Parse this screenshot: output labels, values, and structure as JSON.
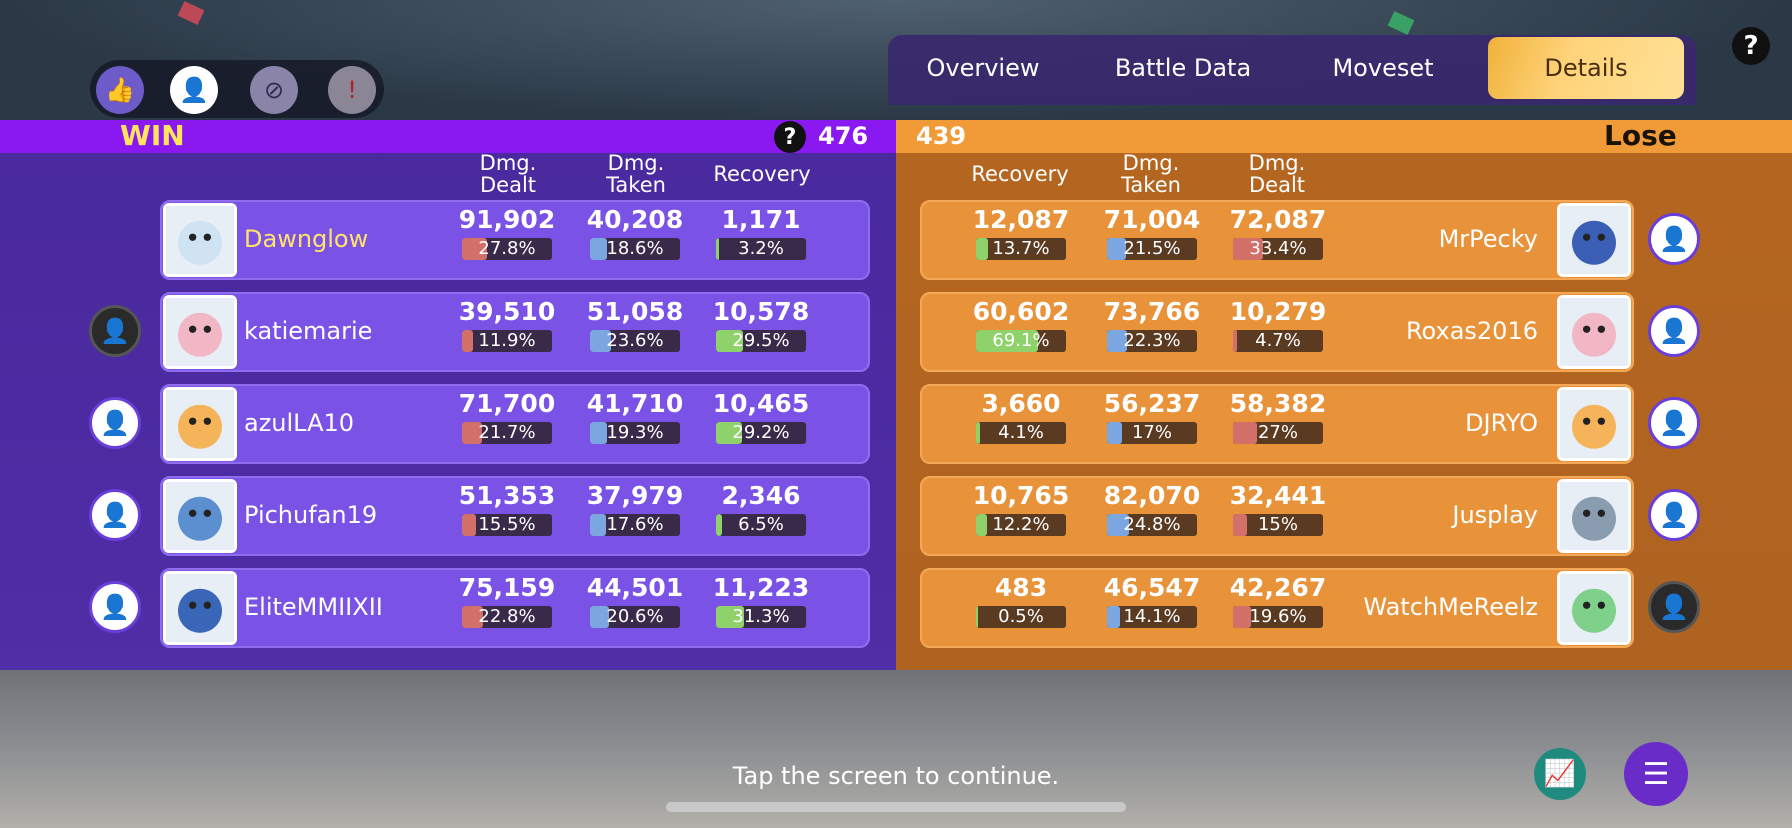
{
  "tabs": [
    {
      "label": "Overview"
    },
    {
      "label": "Battle Data"
    },
    {
      "label": "Moveset"
    },
    {
      "label": "Details"
    }
  ],
  "selected_tab": "Details",
  "reactions": [
    "thumbs-up-icon",
    "add-friend-icon",
    "block-user-icon",
    "report-icon"
  ],
  "win_team": {
    "result": "WIN",
    "score": "476",
    "headers": {
      "dealt": "Dmg.\nDealt",
      "taken": "Dmg.\nTaken",
      "recovery": "Recovery"
    },
    "players": [
      {
        "name": "Dawnglow",
        "dealt": "91,902",
        "dealt_pct": "27.8%",
        "dealt_frac": 0.278,
        "taken": "40,208",
        "taken_pct": "18.6%",
        "taken_frac": 0.186,
        "recovery": "1,171",
        "recovery_pct": "3.2%",
        "recovery_frac": 0.032,
        "friend": "none",
        "avatar_color": "#cfe3f2"
      },
      {
        "name": "katiemarie",
        "dealt": "39,510",
        "dealt_pct": "11.9%",
        "dealt_frac": 0.119,
        "taken": "51,058",
        "taken_pct": "23.6%",
        "taken_frac": 0.236,
        "recovery": "10,578",
        "recovery_pct": "29.5%",
        "recovery_frac": 0.295,
        "friend": "off",
        "avatar_color": "#f2b7c5"
      },
      {
        "name": "azulLA10",
        "dealt": "71,700",
        "dealt_pct": "21.7%",
        "dealt_frac": 0.217,
        "taken": "41,710",
        "taken_pct": "19.3%",
        "taken_frac": 0.193,
        "recovery": "10,465",
        "recovery_pct": "29.2%",
        "recovery_frac": 0.292,
        "friend": "on",
        "avatar_color": "#f5b45a"
      },
      {
        "name": "Pichufan19",
        "dealt": "51,353",
        "dealt_pct": "15.5%",
        "dealt_frac": 0.155,
        "taken": "37,979",
        "taken_pct": "17.6%",
        "taken_frac": 0.176,
        "recovery": "2,346",
        "recovery_pct": "6.5%",
        "recovery_frac": 0.065,
        "friend": "on",
        "avatar_color": "#5b8fcf"
      },
      {
        "name": "EliteMMIIXII",
        "dealt": "75,159",
        "dealt_pct": "22.8%",
        "dealt_frac": 0.228,
        "taken": "44,501",
        "taken_pct": "20.6%",
        "taken_frac": 0.206,
        "recovery": "11,223",
        "recovery_pct": "31.3%",
        "recovery_frac": 0.313,
        "friend": "on",
        "avatar_color": "#3a66b8"
      }
    ]
  },
  "lose_team": {
    "result": "Lose",
    "score": "439",
    "headers": {
      "recovery": "Recovery",
      "taken": "Dmg.\nTaken",
      "dealt": "Dmg.\nDealt"
    },
    "players": [
      {
        "name": "MrPecky",
        "dealt": "72,087",
        "dealt_pct": "33.4%",
        "dealt_frac": 0.334,
        "taken": "71,004",
        "taken_pct": "21.5%",
        "taken_frac": 0.215,
        "recovery": "12,087",
        "recovery_pct": "13.7%",
        "recovery_frac": 0.137,
        "friend": "on",
        "avatar_color": "#3a5fb5"
      },
      {
        "name": "Roxas2016",
        "dealt": "10,279",
        "dealt_pct": "4.7%",
        "dealt_frac": 0.047,
        "taken": "73,766",
        "taken_pct": "22.3%",
        "taken_frac": 0.223,
        "recovery": "60,602",
        "recovery_pct": "69.1%",
        "recovery_frac": 0.691,
        "friend": "on",
        "avatar_color": "#f2b7c5"
      },
      {
        "name": "DJRYO",
        "dealt": "58,382",
        "dealt_pct": "27%",
        "dealt_frac": 0.27,
        "taken": "56,237",
        "taken_pct": "17%",
        "taken_frac": 0.17,
        "recovery": "3,660",
        "recovery_pct": "4.1%",
        "recovery_frac": 0.041,
        "friend": "on",
        "avatar_color": "#f5b45a"
      },
      {
        "name": "Jusplay",
        "dealt": "32,441",
        "dealt_pct": "15%",
        "dealt_frac": 0.15,
        "taken": "82,070",
        "taken_pct": "24.8%",
        "taken_frac": 0.248,
        "recovery": "10,765",
        "recovery_pct": "12.2%",
        "recovery_frac": 0.122,
        "friend": "on",
        "avatar_color": "#8a9cb0"
      },
      {
        "name": "WatchMeReelz",
        "dealt": "42,267",
        "dealt_pct": "19.6%",
        "dealt_frac": 0.196,
        "taken": "46,547",
        "taken_pct": "14.1%",
        "taken_frac": 0.141,
        "recovery": "483",
        "recovery_pct": "0.5%",
        "recovery_frac": 0.005,
        "friend": "off",
        "avatar_color": "#7fd08a"
      }
    ]
  },
  "footer": {
    "continue_text": "Tap the screen to continue."
  },
  "colors": {
    "win": "#8a18f0",
    "lose": "#f09a38",
    "dealt": "#d4706a",
    "taken": "#7ba6e0",
    "recovery": "#8fd16a"
  }
}
